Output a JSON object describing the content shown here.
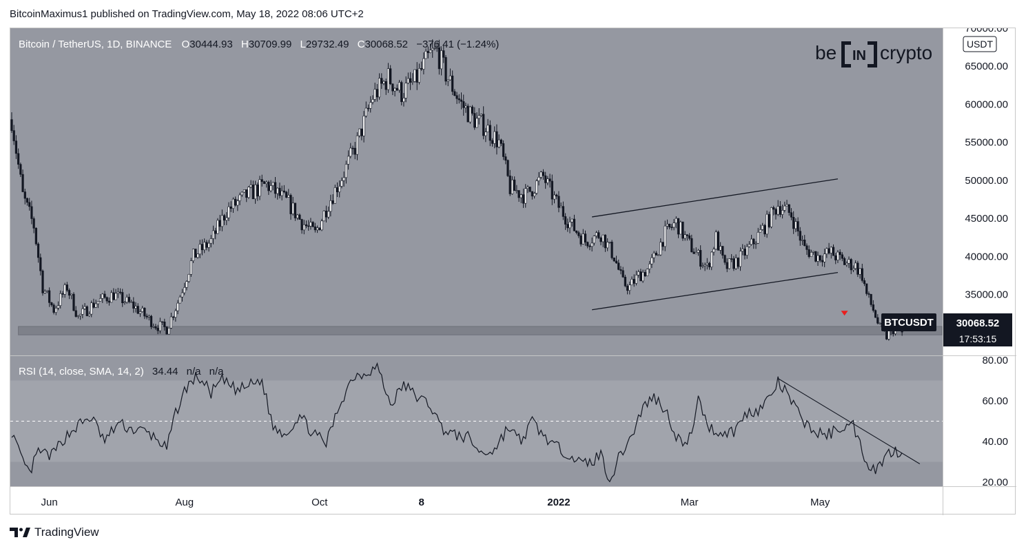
{
  "header": {
    "text": "BitcoinMaximus1 published on TradingView.com, May 18, 2022 08:06 UTC+2"
  },
  "footer": {
    "brand": "TradingView"
  },
  "logo": {
    "left": "be",
    "mid": "IN",
    "right": "crypto"
  },
  "colors": {
    "panel": "#9598a1",
    "rsi_band": "#a1a4ac",
    "price_label_bg": "#131722",
    "marker": "#e91e1e"
  },
  "price_panel": {
    "legend": {
      "symbol": "Bitcoin / TetherUS, 1D, BINANCE",
      "o_label": "O",
      "o_value": "30444.93",
      "h_label": "H",
      "h_value": "30709.99",
      "l_label": "L",
      "l_value": "29732.49",
      "c_label": "C",
      "c_value": "30068.52",
      "change": "−376.41 (−1.24%)"
    },
    "currency": "USDT",
    "ticker": "BTCUSDT",
    "last_price": "30068.52",
    "countdown": "17:53:15"
  },
  "rsi_panel": {
    "legend": {
      "label": "RSI (14, close, SMA, 14, 2)",
      "value": "34.44",
      "na1": "n/a",
      "na2": "n/a"
    }
  },
  "chart_data": [
    {
      "type": "candlestick",
      "ylim": [
        27000,
        70000
      ],
      "yticks": [
        "70000.00",
        "65000.00",
        "60000.00",
        "55000.00",
        "50000.00",
        "45000.00",
        "40000.00",
        "35000.00"
      ],
      "ytick_values": [
        70000,
        65000,
        60000,
        55000,
        50000,
        45000,
        40000,
        35000
      ],
      "x_tick_labels": [
        "Jun",
        "Aug",
        "Oct",
        "8",
        "2022",
        "Mar",
        "May"
      ],
      "x_tick_days": [
        17,
        78,
        139,
        185,
        247,
        306,
        365
      ],
      "keypoints": [
        [
          0,
          58000
        ],
        [
          5,
          48000
        ],
        [
          10,
          44000
        ],
        [
          14,
          36000
        ],
        [
          19,
          33000
        ],
        [
          25,
          36000
        ],
        [
          30,
          32000
        ],
        [
          38,
          34000
        ],
        [
          46,
          35000
        ],
        [
          55,
          33500
        ],
        [
          65,
          31000
        ],
        [
          70,
          30500
        ],
        [
          75,
          34000
        ],
        [
          82,
          40000
        ],
        [
          90,
          42000
        ],
        [
          97,
          46000
        ],
        [
          106,
          48000
        ],
        [
          115,
          49500
        ],
        [
          121,
          48000
        ],
        [
          125,
          47000
        ],
        [
          131,
          44500
        ],
        [
          137,
          43000
        ],
        [
          143,
          47000
        ],
        [
          150,
          51000
        ],
        [
          156,
          55000
        ],
        [
          163,
          61000
        ],
        [
          170,
          63500
        ],
        [
          176,
          61500
        ],
        [
          182,
          63000
        ],
        [
          189,
          66500
        ],
        [
          192,
          67000
        ],
        [
          196,
          64000
        ],
        [
          203,
          60000
        ],
        [
          209,
          58000
        ],
        [
          214,
          57000
        ],
        [
          220,
          55000
        ],
        [
          225,
          49000
        ],
        [
          232,
          48000
        ],
        [
          240,
          50500
        ],
        [
          246,
          47000
        ],
        [
          253,
          44000
        ],
        [
          259,
          42000
        ],
        [
          266,
          43000
        ],
        [
          272,
          40000
        ],
        [
          276,
          36500
        ],
        [
          279,
          36000
        ],
        [
          283,
          37500
        ],
        [
          288,
          38500
        ],
        [
          295,
          43000
        ],
        [
          300,
          44500
        ],
        [
          305,
          42000
        ],
        [
          310,
          40000
        ],
        [
          314,
          38500
        ],
        [
          318,
          42500
        ],
        [
          322,
          38500
        ],
        [
          328,
          39500
        ],
        [
          334,
          41500
        ],
        [
          340,
          44000
        ],
        [
          346,
          46800
        ],
        [
          352,
          45500
        ],
        [
          358,
          41000
        ],
        [
          364,
          40000
        ],
        [
          370,
          40500
        ],
        [
          376,
          39200
        ],
        [
          381,
          38800
        ],
        [
          384,
          37500
        ],
        [
          386,
          35000
        ],
        [
          389,
          33000
        ],
        [
          392,
          30500
        ],
        [
          395,
          29500
        ],
        [
          398,
          30500
        ],
        [
          402,
          30068
        ]
      ],
      "annotations": {
        "support_band": [
          29700,
          30800
        ],
        "channel_upper": [
          [
            262,
            45200
          ],
          [
            373,
            50200
          ]
        ],
        "channel_lower": [
          [
            262,
            33000
          ],
          [
            373,
            37900
          ]
        ],
        "marker": [
          376,
          32500
        ]
      }
    },
    {
      "type": "line",
      "name": "RSI",
      "ylim": [
        18,
        82
      ],
      "yticks": [
        "80.00",
        "60.00",
        "40.00",
        "20.00"
      ],
      "ytick_values": [
        80,
        60,
        40,
        20
      ],
      "bands": {
        "upper": 70,
        "mid": 50,
        "lower": 30
      },
      "keypoints": [
        [
          0,
          45
        ],
        [
          4,
          32
        ],
        [
          8,
          24
        ],
        [
          12,
          35
        ],
        [
          18,
          33
        ],
        [
          24,
          42
        ],
        [
          30,
          48
        ],
        [
          36,
          52
        ],
        [
          42,
          40
        ],
        [
          48,
          49
        ],
        [
          54,
          46
        ],
        [
          60,
          45
        ],
        [
          66,
          41
        ],
        [
          70,
          36
        ],
        [
          74,
          54
        ],
        [
          79,
          67
        ],
        [
          84,
          72
        ],
        [
          90,
          64
        ],
        [
          95,
          70
        ],
        [
          102,
          65
        ],
        [
          108,
          68
        ],
        [
          113,
          70
        ],
        [
          118,
          47
        ],
        [
          124,
          44
        ],
        [
          130,
          53
        ],
        [
          136,
          44
        ],
        [
          142,
          39
        ],
        [
          148,
          58
        ],
        [
          154,
          72
        ],
        [
          160,
          74
        ],
        [
          165,
          77
        ],
        [
          171,
          58
        ],
        [
          177,
          68
        ],
        [
          183,
          62
        ],
        [
          189,
          58
        ],
        [
          194,
          47
        ],
        [
          200,
          43
        ],
        [
          206,
          42
        ],
        [
          212,
          34
        ],
        [
          218,
          36
        ],
        [
          224,
          47
        ],
        [
          230,
          40
        ],
        [
          235,
          50
        ],
        [
          240,
          43
        ],
        [
          246,
          37
        ],
        [
          252,
          34
        ],
        [
          257,
          29
        ],
        [
          262,
          30
        ],
        [
          266,
          34
        ],
        [
          270,
          21
        ],
        [
          275,
          34
        ],
        [
          280,
          43
        ],
        [
          285,
          57
        ],
        [
          290,
          62
        ],
        [
          295,
          56
        ],
        [
          300,
          43
        ],
        [
          305,
          37
        ],
        [
          310,
          60
        ],
        [
          315,
          47
        ],
        [
          320,
          44
        ],
        [
          326,
          45
        ],
        [
          332,
          54
        ],
        [
          338,
          56
        ],
        [
          343,
          63
        ],
        [
          346,
          69
        ],
        [
          351,
          62
        ],
        [
          356,
          52
        ],
        [
          362,
          45
        ],
        [
          368,
          43
        ],
        [
          374,
          47
        ],
        [
          380,
          48
        ],
        [
          386,
          30
        ],
        [
          390,
          26
        ],
        [
          394,
          32
        ],
        [
          398,
          36
        ],
        [
          402,
          34.44
        ]
      ],
      "annotations": {
        "trendline": [
          [
            346,
            71
          ],
          [
            410,
            29
          ]
        ]
      }
    }
  ]
}
